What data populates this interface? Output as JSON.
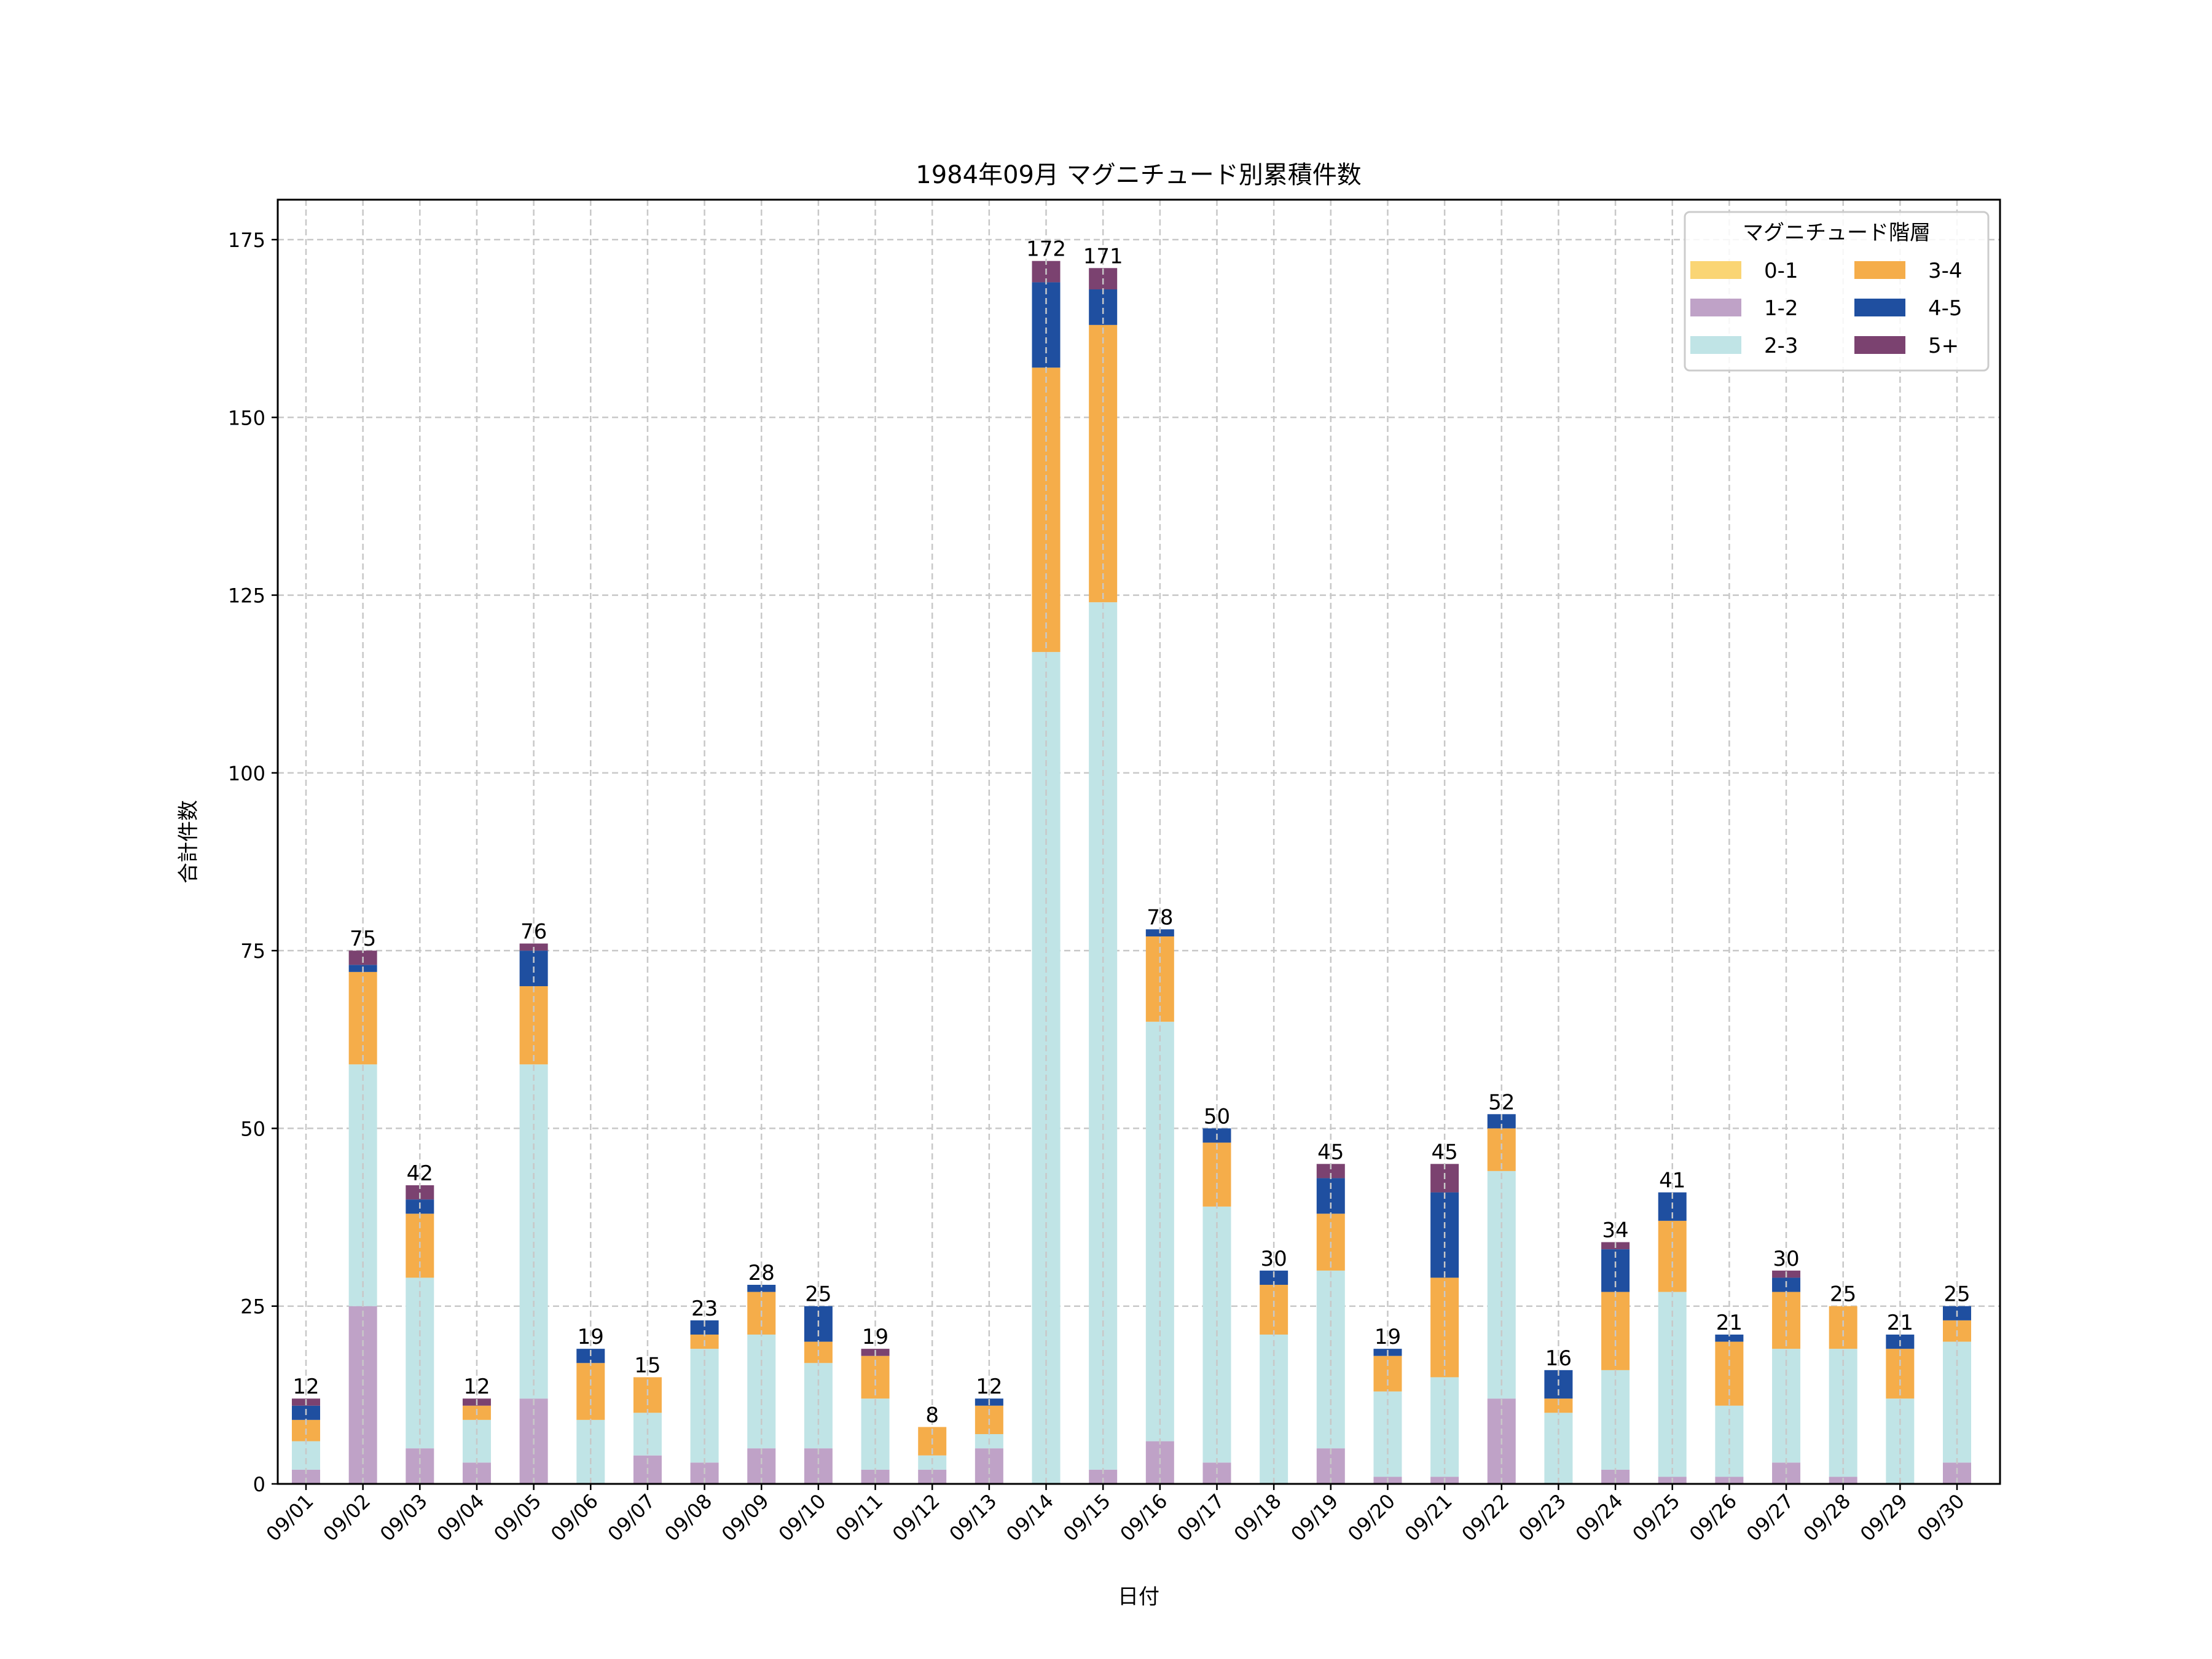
{
  "chart_data": {
    "type": "bar",
    "stacked": true,
    "title": "1984年09月 マグニチュード別累積件数",
    "xlabel": "日付",
    "ylabel": "合計件数",
    "ylim": [
      0,
      181
    ],
    "yticks": [
      0,
      25,
      50,
      75,
      100,
      125,
      150,
      175
    ],
    "grid": true,
    "legend": {
      "title": "マグニチュード階層",
      "placement": "top-right",
      "columns": 2
    },
    "categories": [
      "09/01",
      "09/02",
      "09/03",
      "09/04",
      "09/05",
      "09/06",
      "09/07",
      "09/08",
      "09/09",
      "09/10",
      "09/11",
      "09/12",
      "09/13",
      "09/14",
      "09/15",
      "09/16",
      "09/17",
      "09/18",
      "09/19",
      "09/20",
      "09/21",
      "09/22",
      "09/23",
      "09/24",
      "09/25",
      "09/26",
      "09/27",
      "09/28",
      "09/29",
      "09/30"
    ],
    "series": [
      {
        "name": "0-1",
        "color": "#fad574",
        "values": [
          0,
          0,
          0,
          0,
          0,
          0,
          0,
          0,
          0,
          0,
          0,
          0,
          0,
          0,
          0,
          0,
          0,
          0,
          0,
          0,
          0,
          0,
          0,
          0,
          0,
          0,
          0,
          0,
          0,
          0
        ]
      },
      {
        "name": "1-2",
        "color": "#bfa2c7",
        "values": [
          2,
          25,
          5,
          3,
          12,
          0,
          4,
          3,
          5,
          5,
          2,
          2,
          5,
          0,
          2,
          6,
          3,
          0,
          5,
          1,
          1,
          12,
          0,
          2,
          1,
          1,
          3,
          1,
          0,
          3
        ]
      },
      {
        "name": "2-3",
        "color": "#c0e4e6",
        "values": [
          4,
          34,
          24,
          6,
          47,
          9,
          6,
          16,
          16,
          12,
          10,
          2,
          2,
          117,
          122,
          59,
          36,
          21,
          25,
          12,
          14,
          32,
          10,
          14,
          26,
          10,
          16,
          18,
          12,
          17
        ]
      },
      {
        "name": "3-4",
        "color": "#f5ad4a",
        "values": [
          3,
          13,
          9,
          2,
          11,
          8,
          5,
          2,
          6,
          3,
          6,
          4,
          4,
          40,
          39,
          12,
          9,
          7,
          8,
          5,
          14,
          6,
          2,
          11,
          10,
          9,
          8,
          6,
          7,
          3
        ]
      },
      {
        "name": "4-5",
        "color": "#1f4fa0",
        "values": [
          2,
          1,
          2,
          0,
          5,
          2,
          0,
          2,
          1,
          5,
          0,
          0,
          1,
          12,
          5,
          1,
          2,
          2,
          5,
          1,
          12,
          2,
          4,
          6,
          4,
          1,
          2,
          0,
          2,
          2
        ]
      },
      {
        "name": "5+",
        "color": "#7b4270",
        "values": [
          1,
          2,
          2,
          1,
          1,
          0,
          0,
          0,
          0,
          0,
          1,
          0,
          0,
          3,
          3,
          0,
          0,
          0,
          2,
          0,
          4,
          0,
          0,
          1,
          0,
          0,
          1,
          0,
          0,
          0
        ]
      }
    ],
    "totals": [
      12,
      75,
      42,
      12,
      76,
      19,
      15,
      23,
      28,
      25,
      19,
      8,
      12,
      172,
      171,
      78,
      50,
      30,
      45,
      19,
      45,
      52,
      16,
      34,
      41,
      21,
      30,
      25,
      21,
      25
    ]
  }
}
